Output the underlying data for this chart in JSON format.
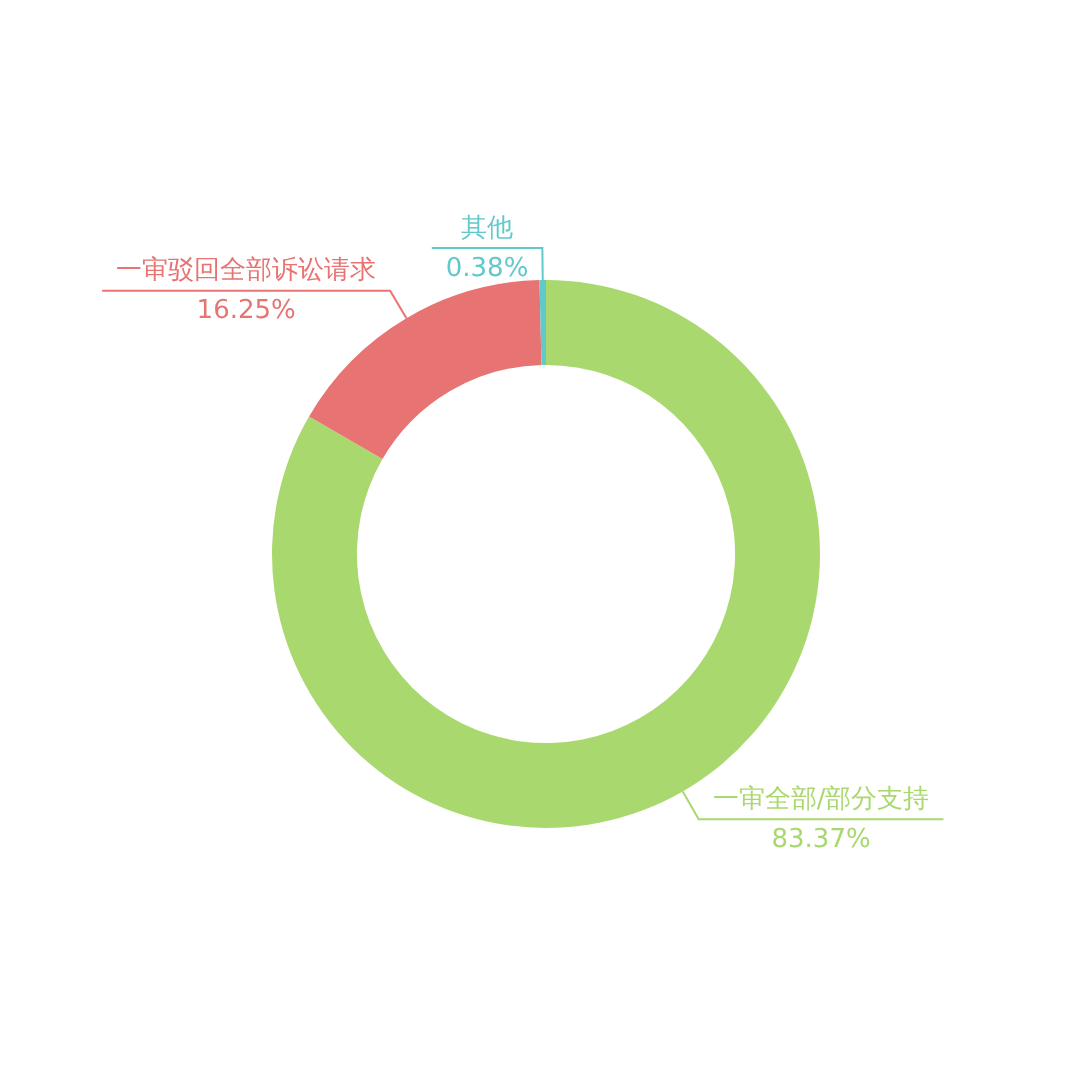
{
  "chart_data": {
    "type": "donut",
    "categories": [
      "一审全部/部分支持",
      "一审驳回全部诉讼请求",
      "其他"
    ],
    "values": [
      83.37,
      16.25,
      0.38
    ],
    "colors": [
      "#a9d86e",
      "#e77472",
      "#62c9cb"
    ],
    "value_labels": [
      "83.37%",
      "16.25%",
      "0.38%"
    ],
    "legend": false
  }
}
